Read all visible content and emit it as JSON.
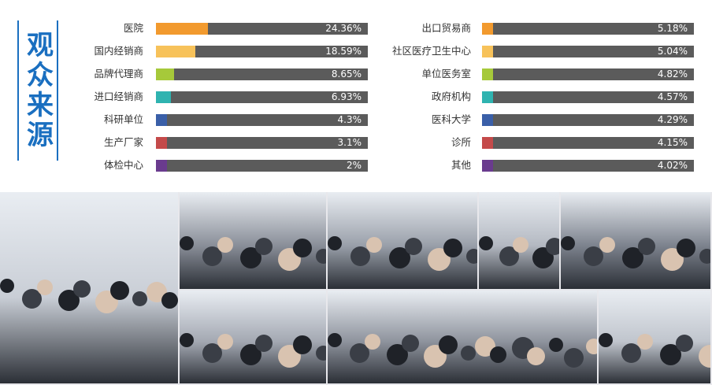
{
  "title": "观众来源",
  "chart_data": {
    "type": "bar",
    "orientation": "horizontal",
    "xlim": [
      0,
      100
    ],
    "columns": [
      {
        "categories": [
          "医院",
          "国内经销商",
          "品牌代理商",
          "进口经销商",
          "科研单位",
          "生产厂家",
          "体检中心"
        ],
        "values": [
          24.36,
          18.59,
          8.65,
          6.93,
          4.3,
          3.1,
          2
        ],
        "labels": [
          "24.36%",
          "18.59%",
          "8.65%",
          "6.93%",
          "4.3%",
          "3.1%",
          "2%"
        ],
        "colors": [
          "#f29a2e",
          "#f7c25a",
          "#a6c93a",
          "#2fb3b0",
          "#3a5fa8",
          "#c44a4a",
          "#6a3b8e"
        ]
      },
      {
        "categories": [
          "出口贸易商",
          "社区医疗卫生中心",
          "单位医务室",
          "政府机构",
          "医科大学",
          "诊所",
          "其他"
        ],
        "values": [
          5.18,
          5.04,
          4.82,
          4.57,
          4.29,
          4.15,
          4.02
        ],
        "labels": [
          "5.18%",
          "5.04%",
          "4.82%",
          "4.57%",
          "4.29%",
          "4.15%",
          "4.02%"
        ],
        "colors": [
          "#f29a2e",
          "#f7c25a",
          "#a6c93a",
          "#2fb3b0",
          "#3a5fa8",
          "#c44a4a",
          "#6a3b8e"
        ]
      }
    ]
  },
  "photo_strip": {
    "panels": [
      {
        "name": "exhibition-hall-photo",
        "color": "#c9ced6"
      },
      {
        "name": "crowd-photo-1",
        "color": "#8a8f99"
      },
      {
        "name": "crowd-photo-2",
        "color": "#9aa0aa"
      },
      {
        "name": "crowd-photo-3",
        "color": "#b4b9c2"
      },
      {
        "name": "crowd-photo-4",
        "color": "#7d838e"
      },
      {
        "name": "crowd-photo-5",
        "color": "#a3a8b2"
      },
      {
        "name": "crowd-photo-6",
        "color": "#8e939d"
      },
      {
        "name": "crowd-photo-7",
        "color": "#c0c5cd"
      }
    ]
  }
}
